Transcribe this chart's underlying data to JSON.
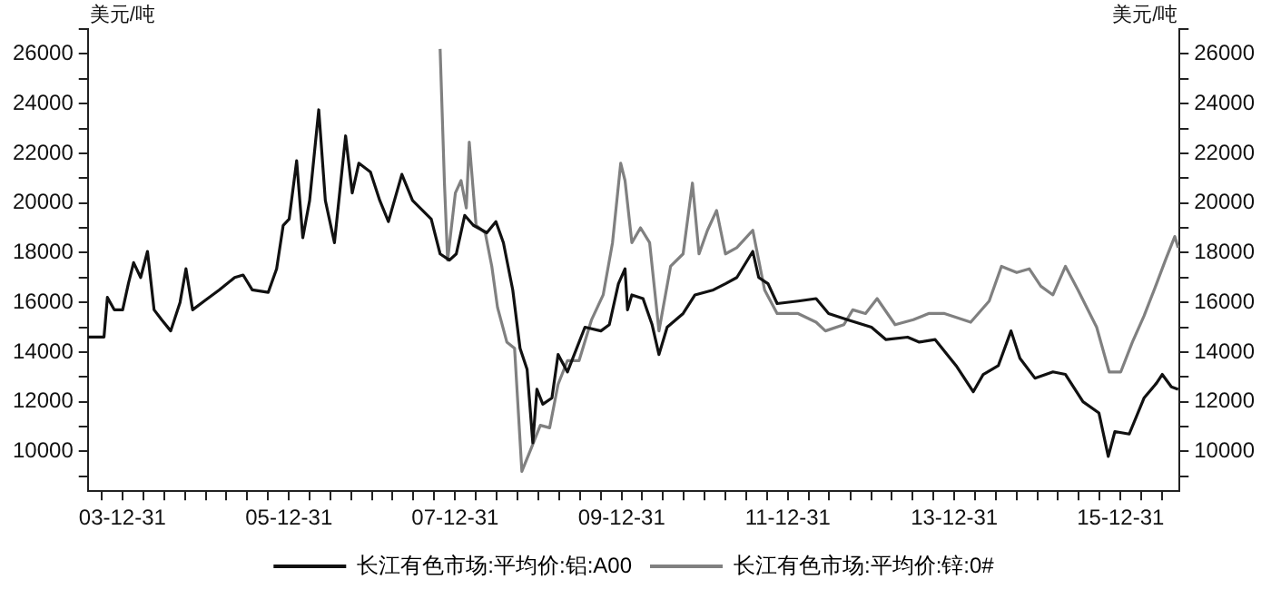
{
  "chart_data": {
    "type": "line",
    "ylabel": "美元/吨",
    "y2label": "美元/吨",
    "xlim": [
      "2003-08-01",
      "2016-09-15"
    ],
    "xticks": [
      {
        "value": "2003-09-30",
        "label": null
      },
      {
        "value": "2003-12-31",
        "label": "03-12-31"
      },
      {
        "value": "2004-03-31",
        "label": null
      },
      {
        "value": "2004-06-30",
        "label": null
      },
      {
        "value": "2004-09-30",
        "label": null
      },
      {
        "value": "2004-12-31",
        "label": null
      },
      {
        "value": "2005-03-31",
        "label": null
      },
      {
        "value": "2005-06-30",
        "label": null
      },
      {
        "value": "2005-09-30",
        "label": null
      },
      {
        "value": "2005-12-31",
        "label": "05-12-31"
      },
      {
        "value": "2006-03-31",
        "label": null
      },
      {
        "value": "2006-06-30",
        "label": null
      },
      {
        "value": "2006-09-30",
        "label": null
      },
      {
        "value": "2006-12-31",
        "label": null
      },
      {
        "value": "2007-03-31",
        "label": null
      },
      {
        "value": "2007-06-30",
        "label": null
      },
      {
        "value": "2007-09-30",
        "label": null
      },
      {
        "value": "2007-12-31",
        "label": "07-12-31"
      },
      {
        "value": "2008-03-31",
        "label": null
      },
      {
        "value": "2008-06-30",
        "label": null
      },
      {
        "value": "2008-09-30",
        "label": null
      },
      {
        "value": "2008-12-31",
        "label": null
      },
      {
        "value": "2009-03-31",
        "label": null
      },
      {
        "value": "2009-06-30",
        "label": null
      },
      {
        "value": "2009-09-30",
        "label": null
      },
      {
        "value": "2009-12-31",
        "label": "09-12-31"
      },
      {
        "value": "2010-03-31",
        "label": null
      },
      {
        "value": "2010-06-30",
        "label": null
      },
      {
        "value": "2010-09-30",
        "label": null
      },
      {
        "value": "2010-12-31",
        "label": null
      },
      {
        "value": "2011-03-31",
        "label": null
      },
      {
        "value": "2011-06-30",
        "label": null
      },
      {
        "value": "2011-09-30",
        "label": null
      },
      {
        "value": "2011-12-31",
        "label": "11-12-31"
      },
      {
        "value": "2012-03-31",
        "label": null
      },
      {
        "value": "2012-06-30",
        "label": null
      },
      {
        "value": "2012-09-30",
        "label": null
      },
      {
        "value": "2012-12-31",
        "label": null
      },
      {
        "value": "2013-03-31",
        "label": null
      },
      {
        "value": "2013-06-30",
        "label": null
      },
      {
        "value": "2013-09-30",
        "label": null
      },
      {
        "value": "2013-12-31",
        "label": "13-12-31"
      },
      {
        "value": "2014-03-31",
        "label": null
      },
      {
        "value": "2014-06-30",
        "label": null
      },
      {
        "value": "2014-09-30",
        "label": null
      },
      {
        "value": "2014-12-31",
        "label": null
      },
      {
        "value": "2015-03-31",
        "label": null
      },
      {
        "value": "2015-06-30",
        "label": null
      },
      {
        "value": "2015-09-30",
        "label": null
      },
      {
        "value": "2015-12-31",
        "label": "15-12-31"
      },
      {
        "value": "2016-03-31",
        "label": null
      },
      {
        "value": "2016-06-30",
        "label": null
      }
    ],
    "ylim": [
      8400,
      27000
    ],
    "yticks": [
      {
        "value": 9000,
        "label": null
      },
      10000,
      {
        "value": 11000,
        "label": null
      },
      12000,
      {
        "value": 13000,
        "label": null
      },
      14000,
      {
        "value": 15000,
        "label": null
      },
      16000,
      {
        "value": 17000,
        "label": null
      },
      18000,
      {
        "value": 19000,
        "label": null
      },
      20000,
      {
        "value": 21000,
        "label": null
      },
      22000,
      {
        "value": 23000,
        "label": null
      },
      24000,
      {
        "value": 25000,
        "label": null
      },
      26000,
      {
        "value": 27000,
        "label": null
      }
    ],
    "y2lim": [
      8400,
      27000
    ],
    "y2ticks": [
      {
        "value": 9000,
        "label": null
      },
      10000,
      {
        "value": 11000,
        "label": null
      },
      12000,
      {
        "value": 13000,
        "label": null
      },
      14000,
      {
        "value": 15000,
        "label": null
      },
      16000,
      {
        "value": 17000,
        "label": null
      },
      18000,
      {
        "value": 19000,
        "label": null
      },
      20000,
      {
        "value": 21000,
        "label": null
      },
      22000,
      {
        "value": 23000,
        "label": null
      },
      24000,
      {
        "value": 25000,
        "label": null
      },
      26000,
      {
        "value": 27000,
        "label": null
      }
    ],
    "grid": false,
    "legend": "bottom",
    "marker": "none",
    "line_style": "solid",
    "series": [
      {
        "name": "长江有色市场:平均价:铝:A00",
        "color": "#111111",
        "x": [
          "2003-08-01",
          "2003-10-11",
          "2003-10-26",
          "2003-11-25",
          "2004-01-01",
          "2004-01-26",
          "2004-02-18",
          "2004-03-20",
          "2004-04-19",
          "2004-05-18",
          "2004-06-20",
          "2004-07-30",
          "2004-09-09",
          "2004-10-05",
          "2004-11-03",
          "2004-12-24",
          "2005-02-28",
          "2005-05-07",
          "2005-06-13",
          "2005-07-23",
          "2005-10-01",
          "2005-11-07",
          "2005-12-06",
          "2006-01-01",
          "2006-02-03",
          "2006-03-02",
          "2006-04-01",
          "2006-05-11",
          "2006-06-09",
          "2006-07-19",
          "2006-09-06",
          "2006-10-05",
          "2006-11-03",
          "2006-12-24",
          "2007-02-03",
          "2007-03-13",
          "2007-05-11",
          "2007-06-27",
          "2007-09-17",
          "2007-10-26",
          "2007-12-06",
          "2008-01-05",
          "2008-02-11",
          "2008-03-20",
          "2008-05-18",
          "2008-06-27",
          "2008-07-30",
          "2008-09-09",
          "2008-10-11",
          "2008-11-11",
          "2008-12-06",
          "2008-12-24",
          "2009-01-19",
          "2009-02-28",
          "2009-03-27",
          "2009-05-07",
          "2009-07-23",
          "2009-10-01",
          "2009-11-07",
          "2009-12-17",
          "2010-01-15",
          "2010-01-26",
          "2010-02-14",
          "2010-04-04",
          "2010-05-14",
          "2010-06-13",
          "2010-07-19",
          "2010-09-27",
          "2010-11-18",
          "2011-02-07",
          "2011-04-01",
          "2011-05-21",
          "2011-07-30",
          "2011-08-25",
          "2011-10-05",
          "2011-11-14",
          "2012-02-14",
          "2012-05-03",
          "2012-06-27",
          "2012-09-17",
          "2013-01-01",
          "2013-03-06",
          "2013-06-09",
          "2013-07-30",
          "2013-10-08",
          "2014-01-08",
          "2014-03-24",
          "2014-05-07",
          "2014-07-12",
          "2014-09-06",
          "2014-10-15",
          "2014-12-20",
          "2015-03-09",
          "2015-05-03",
          "2015-07-19",
          "2015-09-27",
          "2015-11-07",
          "2015-12-06",
          "2016-02-07",
          "2016-04-12",
          "2016-06-06",
          "2016-07-01",
          "2016-08-10",
          "2016-09-09"
        ],
        "values": [
          14600,
          14600,
          16200,
          15700,
          15700,
          16750,
          17600,
          17000,
          18050,
          15700,
          15300,
          14850,
          16000,
          17350,
          15700,
          16050,
          16500,
          17000,
          17100,
          16500,
          16400,
          17350,
          19100,
          19350,
          21700,
          18600,
          20100,
          23750,
          20100,
          18400,
          22700,
          20400,
          21600,
          21250,
          20100,
          19250,
          21150,
          20100,
          19350,
          17950,
          17700,
          17950,
          19500,
          19100,
          18800,
          19250,
          18400,
          16500,
          14150,
          13300,
          10350,
          12500,
          11900,
          12150,
          13900,
          13200,
          15000,
          14850,
          15100,
          16750,
          17350,
          15700,
          16300,
          16150,
          15100,
          13900,
          15000,
          15550,
          16300,
          16500,
          16750,
          17000,
          18050,
          17000,
          16750,
          15950,
          16050,
          16150,
          15550,
          15300,
          15000,
          14500,
          14600,
          14400,
          14500,
          13450,
          12400,
          13100,
          13450,
          14850,
          13750,
          12950,
          13200,
          13100,
          12000,
          11550,
          9800,
          10800,
          10700,
          12150,
          12750,
          13100,
          12600,
          12500
        ]
      },
      {
        "name": "长江有色市场:平均价:锌:0#",
        "color": "#808080",
        "x": [
          "2007-10-26",
          "2007-11-14",
          "2007-11-28",
          "2008-01-01",
          "2008-01-26",
          "2008-02-18",
          "2008-03-02",
          "2008-04-01",
          "2008-05-11",
          "2008-06-09",
          "2008-07-04",
          "2008-08-14",
          "2008-09-17",
          "2008-10-19",
          "2008-11-28",
          "2009-01-08",
          "2009-02-18",
          "2009-03-27",
          "2009-05-07",
          "2009-06-27",
          "2009-08-21",
          "2009-10-11",
          "2009-11-21",
          "2009-12-27",
          "2010-01-15",
          "2010-02-14",
          "2010-03-24",
          "2010-05-03",
          "2010-06-13",
          "2010-08-03",
          "2010-09-27",
          "2010-11-07",
          "2010-12-06",
          "2011-01-12",
          "2011-02-21",
          "2011-04-01",
          "2011-05-21",
          "2011-07-30",
          "2011-09-20",
          "2011-11-14",
          "2012-02-14",
          "2012-05-03",
          "2012-06-13",
          "2012-09-02",
          "2012-10-11",
          "2012-12-06",
          "2013-01-26",
          "2013-04-15",
          "2013-07-04",
          "2013-09-09",
          "2013-11-18",
          "2014-03-13",
          "2014-06-02",
          "2014-07-26",
          "2014-10-01",
          "2014-11-25",
          "2015-01-15",
          "2015-03-09",
          "2015-05-03",
          "2015-06-27",
          "2015-09-17",
          "2015-11-11",
          "2016-01-01",
          "2016-02-21",
          "2016-04-12",
          "2016-06-06",
          "2016-07-15",
          "2016-08-25",
          "2016-09-09"
        ],
        "values": [
          26200,
          20800,
          17700,
          20400,
          20900,
          19800,
          22450,
          19100,
          18800,
          17450,
          15800,
          14400,
          14150,
          9200,
          10100,
          11050,
          10950,
          12700,
          13650,
          13650,
          15300,
          16300,
          18400,
          21600,
          20900,
          18400,
          19000,
          18400,
          14850,
          17450,
          17950,
          20800,
          17950,
          18900,
          19700,
          17950,
          18200,
          18900,
          16500,
          15550,
          15550,
          15200,
          14850,
          15100,
          15700,
          15550,
          16150,
          15100,
          15300,
          15550,
          15550,
          15200,
          16050,
          17450,
          17200,
          17350,
          16650,
          16300,
          17450,
          16500,
          15000,
          13200,
          13200,
          14400,
          15450,
          16750,
          17700,
          18650,
          18200
        ]
      }
    ]
  }
}
